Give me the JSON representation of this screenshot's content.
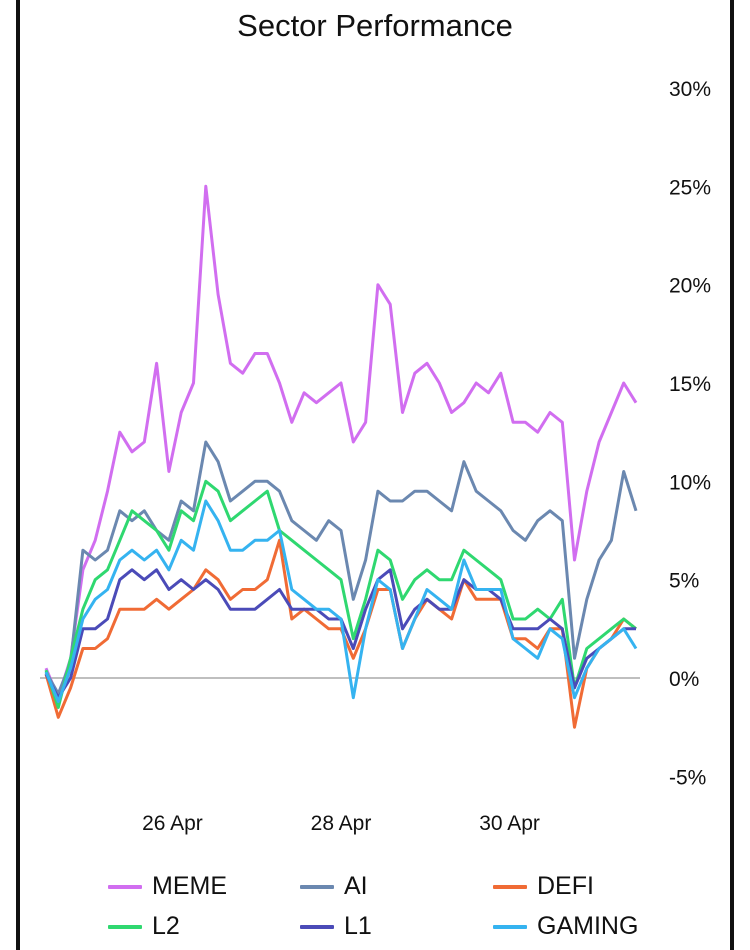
{
  "chart_data": {
    "type": "line",
    "title": "Sector Performance",
    "xlabel": "",
    "ylabel": "",
    "x_ticks": [
      "26 Apr",
      "28 Apr",
      "30 Apr"
    ],
    "y_ticks": [
      "30%",
      "25%",
      "20%",
      "15%",
      "10%",
      "5%",
      "0%",
      "-5%"
    ],
    "ylim": [
      -5,
      30
    ],
    "xlim": [
      "2025-04-24T12:00",
      "2025-05-01T12:00"
    ],
    "y_axis_position": "right",
    "grid": false,
    "zero_line": true,
    "legend_position": "bottom",
    "x_sample_dates": [
      "24 Apr 12:00",
      "25 Apr 00:00",
      "25 Apr 12:00",
      "26 Apr 00:00",
      "26 Apr 12:00",
      "27 Apr 00:00",
      "27 Apr 12:00",
      "28 Apr 00:00",
      "28 Apr 12:00",
      "29 Apr 00:00",
      "29 Apr 12:00",
      "30 Apr 00:00",
      "30 Apr 12:00",
      "1 May 00:00",
      "1 May 12:00"
    ],
    "series": [
      {
        "name": "MEME",
        "color": "#d16ef0",
        "values": [
          0.5,
          -1.0,
          1.0,
          5.5,
          7.0,
          9.5,
          12.5,
          11.5,
          12.0,
          16.0,
          10.5,
          13.5,
          15.0,
          25.0,
          19.5,
          16.0,
          15.5,
          16.5,
          16.5,
          15.0,
          13.0,
          14.5,
          14.0,
          14.5,
          15.0,
          12.0,
          13.0,
          20.0,
          19.0,
          13.5,
          15.5,
          16.0,
          15.0,
          13.5,
          14.0,
          15.0,
          14.5,
          15.5,
          13.0,
          13.0,
          12.5,
          13.5,
          13.0,
          6.0,
          9.5,
          12.0,
          13.5,
          15.0,
          14.0
        ]
      },
      {
        "name": "AI",
        "color": "#6b88b0",
        "values": [
          0.3,
          -0.8,
          0.8,
          6.5,
          6.0,
          6.5,
          8.5,
          8.0,
          8.5,
          7.5,
          7.0,
          9.0,
          8.5,
          12.0,
          11.0,
          9.0,
          9.5,
          10.0,
          10.0,
          9.5,
          8.0,
          7.5,
          7.0,
          8.0,
          7.5,
          4.0,
          6.0,
          9.5,
          9.0,
          9.0,
          9.5,
          9.5,
          9.0,
          8.5,
          11.0,
          9.5,
          9.0,
          8.5,
          7.5,
          7.0,
          8.0,
          8.5,
          8.0,
          1.0,
          4.0,
          6.0,
          7.0,
          10.5,
          8.5
        ]
      },
      {
        "name": "DEFI",
        "color": "#f06b35",
        "values": [
          0.2,
          -2.0,
          -0.5,
          1.5,
          1.5,
          2.0,
          3.5,
          3.5,
          3.5,
          4.0,
          3.5,
          4.0,
          4.5,
          5.5,
          5.0,
          4.0,
          4.5,
          4.5,
          5.0,
          7.0,
          3.0,
          3.5,
          3.0,
          2.5,
          2.5,
          1.0,
          2.5,
          4.5,
          4.5,
          1.5,
          3.0,
          4.0,
          3.5,
          3.0,
          5.0,
          4.0,
          4.0,
          4.0,
          2.0,
          2.0,
          1.5,
          2.5,
          2.5,
          -2.5,
          0.5,
          1.5,
          2.0,
          3.0,
          2.5
        ]
      },
      {
        "name": "L2",
        "color": "#2fd870",
        "values": [
          0.4,
          -1.5,
          1.0,
          3.5,
          5.0,
          5.5,
          7.0,
          8.5,
          8.0,
          7.5,
          6.5,
          8.5,
          8.0,
          10.0,
          9.5,
          8.0,
          8.5,
          9.0,
          9.5,
          7.5,
          7.0,
          6.5,
          6.0,
          5.5,
          5.0,
          2.0,
          4.0,
          6.5,
          6.0,
          4.0,
          5.0,
          5.5,
          5.0,
          5.0,
          6.5,
          6.0,
          5.5,
          5.0,
          3.0,
          3.0,
          3.5,
          3.0,
          4.0,
          -0.5,
          1.5,
          2.0,
          2.5,
          3.0,
          2.5
        ]
      },
      {
        "name": "L1",
        "color": "#4b4bb8",
        "values": [
          0.2,
          -1.0,
          0.0,
          2.5,
          2.5,
          3.0,
          5.0,
          5.5,
          5.0,
          5.5,
          4.5,
          5.0,
          4.5,
          5.0,
          4.5,
          3.5,
          3.5,
          3.5,
          4.0,
          4.5,
          3.5,
          3.5,
          3.5,
          3.0,
          3.0,
          1.5,
          3.5,
          5.0,
          5.5,
          2.5,
          3.5,
          4.0,
          3.5,
          3.5,
          5.0,
          4.5,
          4.5,
          4.0,
          2.5,
          2.5,
          2.5,
          3.0,
          2.5,
          -0.5,
          1.0,
          1.5,
          2.0,
          2.5,
          2.5
        ]
      },
      {
        "name": "GAMING",
        "color": "#35b3f0",
        "values": [
          0.3,
          -1.2,
          0.5,
          3.0,
          4.0,
          4.5,
          6.0,
          6.5,
          6.0,
          6.5,
          5.5,
          7.0,
          6.5,
          9.0,
          8.0,
          6.5,
          6.5,
          7.0,
          7.0,
          7.5,
          4.5,
          4.0,
          3.5,
          3.5,
          3.0,
          -1.0,
          2.5,
          5.0,
          4.5,
          1.5,
          3.0,
          4.5,
          4.0,
          3.5,
          6.0,
          4.5,
          4.5,
          4.5,
          2.0,
          1.5,
          1.0,
          2.5,
          2.0,
          -1.0,
          0.5,
          1.5,
          2.0,
          2.5,
          1.5
        ]
      }
    ]
  }
}
